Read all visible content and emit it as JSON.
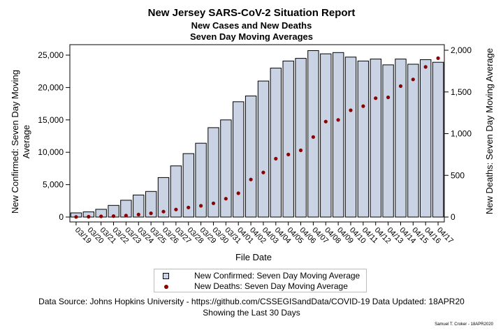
{
  "titles": {
    "main": "New Jersey SARS-CoV-2 Situation Report",
    "sub1": "New Cases and New Deaths",
    "sub2": "Seven Day Moving Averages"
  },
  "chart_data": {
    "type": "bar",
    "xlabel": "File Date",
    "ylabel_left": "New Confirmed: Seven Day Moving Average",
    "ylabel_right": "New Deaths: Seven Day Moving Average",
    "ylim_left": [
      0,
      25000
    ],
    "ylim_right": [
      0,
      2000
    ],
    "yticks_left": [
      "0",
      "5,000",
      "10,000",
      "15,000",
      "20,000",
      "25,000"
    ],
    "yticks_right": [
      "0",
      "500",
      "1,000",
      "1,500",
      "2,000"
    ],
    "categories": [
      "03/19",
      "03/20",
      "03/21",
      "03/22",
      "03/23",
      "03/24",
      "03/25",
      "03/26",
      "03/27",
      "03/28",
      "03/29",
      "03/30",
      "03/31",
      "04/01",
      "04/02",
      "04/03",
      "04/04",
      "04/05",
      "04/06",
      "04/07",
      "04/08",
      "04/09",
      "04/10",
      "04/11",
      "04/12",
      "04/13",
      "04/14",
      "04/15",
      "04/16",
      "04/17"
    ],
    "series": [
      {
        "name": "New Confirmed: Seven Day Moving Average",
        "kind": "bar",
        "axis": "left",
        "color": "#c9d3e3",
        "values": [
          650,
          800,
          1200,
          1800,
          2600,
          3400,
          3950,
          6100,
          7900,
          9800,
          11400,
          13800,
          15000,
          17800,
          18700,
          21000,
          23000,
          24100,
          24500,
          25700,
          25200,
          25400,
          24700,
          24100,
          24400,
          23500,
          24400,
          23600,
          24300,
          23900
        ]
      },
      {
        "name": "New Deaths: Seven Day Moving Average",
        "kind": "scatter",
        "axis": "right",
        "color": "#8b0000",
        "values": [
          2,
          4,
          8,
          12,
          18,
          30,
          45,
          65,
          90,
          115,
          135,
          165,
          220,
          285,
          450,
          535,
          700,
          750,
          800,
          960,
          1145,
          1165,
          1280,
          1330,
          1425,
          1435,
          1570,
          1650,
          1800,
          1905
        ]
      }
    ],
    "grid": false,
    "legend": "bottom"
  },
  "legend": {
    "cases_label": "New Confirmed: Seven Day Moving Average",
    "deaths_label": "New Deaths: Seven Day Moving Average"
  },
  "footnote": {
    "source": "Data Source: Johns Hopkins University - https://github.com/CSSEGISandData/COVID-19 Data Updated: 18APR20",
    "window": "Showing the Last 30 Days"
  },
  "credit": "Samuel T. Croker - 18APR2020"
}
